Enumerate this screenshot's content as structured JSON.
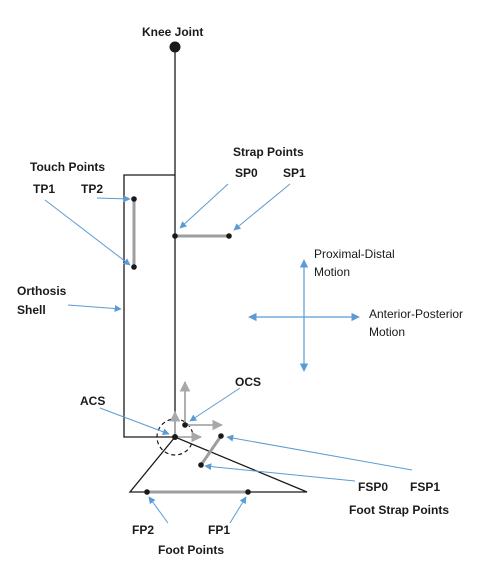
{
  "labels": {
    "knee_joint": "Knee Joint",
    "touch_points": "Touch Points",
    "tp1": "TP1",
    "tp2": "TP2",
    "strap_points": "Strap Points",
    "sp0": "SP0",
    "sp1": "SP1",
    "proximal_distal_line1": "Proximal-Distal",
    "proximal_distal_line2": "Motion",
    "orthosis_line1": "Orthosis",
    "orthosis_line2": "Shell",
    "anterior_posterior_line1": "Anterior-Posterior",
    "anterior_posterior_line2": "Motion",
    "ocs": "OCS",
    "acs": "ACS",
    "fsp0": "FSP0",
    "fsp1": "FSP1",
    "foot_strap_points": "Foot Strap Points",
    "fp2": "FP2",
    "fp1": "FP1",
    "foot_points": "Foot Points"
  },
  "colors": {
    "structure": "#1a1a1a",
    "segment": "#9e9e9e",
    "annotation_arrow": "#5b9bd5",
    "axis_arrow": "#a8a8a8"
  }
}
